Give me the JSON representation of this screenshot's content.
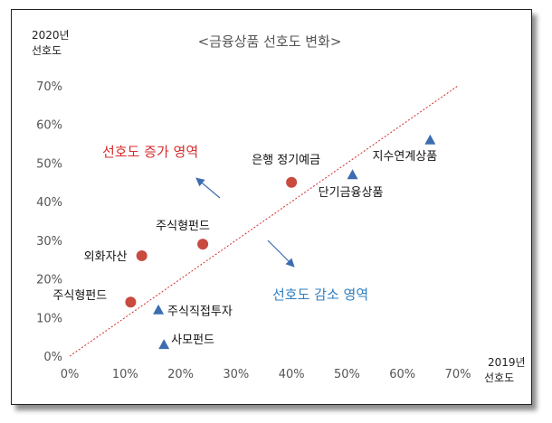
{
  "chart_data": {
    "type": "scatter",
    "title": "<금융상품 선호도 변화>",
    "y_axis_title": [
      "2020년",
      "선호도"
    ],
    "x_axis_title": [
      "2019년",
      "선호도"
    ],
    "xlim": [
      0,
      70
    ],
    "ylim": [
      0,
      70
    ],
    "x_ticks": [
      "0%",
      "10%",
      "20%",
      "30%",
      "40%",
      "50%",
      "60%",
      "70%"
    ],
    "y_ticks": [
      "0%",
      "10%",
      "20%",
      "30%",
      "40%",
      "50%",
      "60%",
      "70%"
    ],
    "grid": false,
    "diagonal": {
      "from": [
        0,
        0
      ],
      "to": [
        70,
        70
      ],
      "color": "#d62d2d",
      "style": "dotted"
    },
    "region_labels": {
      "increase": "선호도 증가 영역",
      "decrease": "선호도 감소 영역"
    },
    "colors": {
      "increase": "#c94a3e",
      "decrease": "#3d6db0",
      "increase_text": "#d62d2d",
      "decrease_text": "#2f7fc1"
    },
    "points": [
      {
        "label": "은행 정기예금",
        "x": 40,
        "y": 45,
        "marker": "circle",
        "group": "increase"
      },
      {
        "label": "주식형펀드",
        "x": 24,
        "y": 29,
        "marker": "circle",
        "group": "increase"
      },
      {
        "label": "외화자산",
        "x": 13,
        "y": 26,
        "marker": "circle",
        "group": "increase"
      },
      {
        "label": "주식형펀드",
        "x": 11,
        "y": 14,
        "marker": "circle",
        "group": "increase"
      },
      {
        "label": "지수연계상품",
        "x": 65,
        "y": 56,
        "marker": "triangle",
        "group": "decrease"
      },
      {
        "label": "단기금융상품",
        "x": 51,
        "y": 47,
        "marker": "triangle",
        "group": "decrease"
      },
      {
        "label": "주식직접투자",
        "x": 16,
        "y": 12,
        "marker": "triangle",
        "group": "decrease"
      },
      {
        "label": "사모펀드",
        "x": 17,
        "y": 3,
        "marker": "triangle",
        "group": "decrease"
      }
    ]
  }
}
